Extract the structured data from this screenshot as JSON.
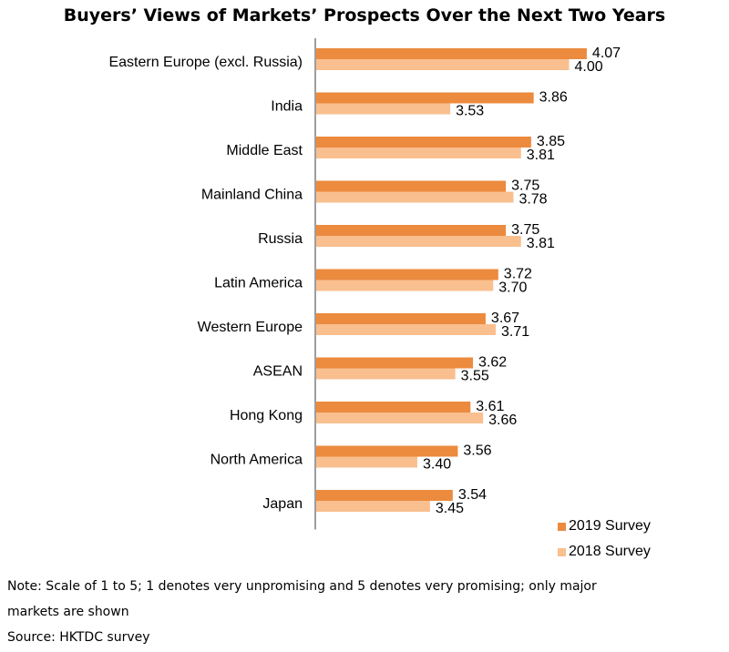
{
  "title": "Buyers’ Views of Markets’ Prospects Over the Next Two Years",
  "colors": {
    "series_2019": "#ec8a3e",
    "series_2018": "#f9bf8f",
    "axis": "#7f7f7f"
  },
  "chart_data": {
    "type": "bar",
    "orientation": "horizontal",
    "title": "Buyers’ Views of Markets’ Prospects Over the Next Two Years",
    "categories": [
      "Eastern Europe (excl. Russia)",
      "India",
      "Middle East",
      "Mainland China",
      "Russia",
      "Latin America",
      "Western Europe",
      "ASEAN",
      "Hong Kong",
      "North America",
      "Japan"
    ],
    "series": [
      {
        "name": "2019 Survey",
        "values": [
          4.07,
          3.86,
          3.85,
          3.75,
          3.75,
          3.72,
          3.67,
          3.62,
          3.61,
          3.56,
          3.54
        ],
        "labels": [
          "4.07",
          "3.86",
          "3.85",
          "3.75",
          "3.75",
          "3.72",
          "3.67",
          "3.62",
          "3.61",
          "3.56",
          "3.54"
        ]
      },
      {
        "name": "2018 Survey",
        "values": [
          4.0,
          3.53,
          3.81,
          3.78,
          3.81,
          3.7,
          3.71,
          3.55,
          3.66,
          3.4,
          3.45
        ],
        "labels": [
          "4.00",
          "3.53",
          "3.81",
          "3.78",
          "3.81",
          "3.70",
          "3.71",
          "3.55",
          "3.66",
          "3.40",
          "3.45"
        ]
      }
    ],
    "xlim": [
      3.0,
      4.2
    ],
    "grid": false,
    "legend_position": "bottom-right"
  },
  "notes": {
    "line1": "Note: Scale of 1 to 5; 1 denotes very unpromising and 5 denotes very promising; only major",
    "line2": "markets are shown",
    "source": "Source: HKTDC survey"
  }
}
